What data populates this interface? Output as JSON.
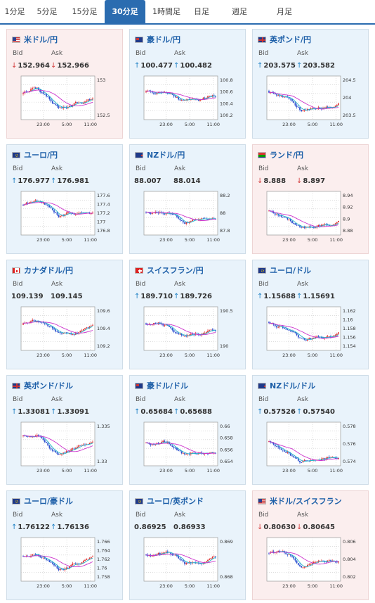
{
  "tabs": [
    {
      "label": "1分足",
      "active": false
    },
    {
      "label": "5分足",
      "active": false
    },
    {
      "label": "15分足",
      "active": false
    },
    {
      "label": "30分足",
      "active": true
    },
    {
      "label": "1時間足",
      "active": false
    },
    {
      "label": "日足",
      "active": false
    },
    {
      "label": "週足",
      "active": false
    },
    {
      "label": "月足",
      "active": false
    }
  ],
  "labels": {
    "bid": "Bid",
    "ask": "Ask"
  },
  "x_ticks": [
    "23:00",
    "5:00",
    "11:00"
  ],
  "cards": [
    {
      "pair": "米ドル/円",
      "flag": "us-jp-flag-icon",
      "trend": "down",
      "bid": "152.964",
      "ask": "152.966",
      "y_ticks": [
        "153",
        "152.5"
      ],
      "seed": 1
    },
    {
      "pair": "豪ドル/円",
      "flag": "au-jp-flag-icon",
      "trend": "up",
      "bid": "100.477",
      "ask": "100.482",
      "y_ticks": [
        "100.8",
        "100.6",
        "100.4",
        "100.2"
      ],
      "seed": 2
    },
    {
      "pair": "英ポンド/円",
      "flag": "gb-jp-flag-icon",
      "trend": "up",
      "bid": "203.575",
      "ask": "203.582",
      "y_ticks": [
        "204.5",
        "204",
        "203.5"
      ],
      "seed": 3
    },
    {
      "pair": "ユーロ/円",
      "flag": "eu-jp-flag-icon",
      "trend": "up",
      "bid": "176.977",
      "ask": "176.981",
      "y_ticks": [
        "177.6",
        "177.4",
        "177.2",
        "177",
        "176.8"
      ],
      "seed": 4
    },
    {
      "pair": "NZドル/円",
      "flag": "nz-jp-flag-icon",
      "trend": "none",
      "bid": "88.007",
      "ask": "88.014",
      "y_ticks": [
        "88.2",
        "88",
        "87.8"
      ],
      "seed": 5
    },
    {
      "pair": "ランド/円",
      "flag": "za-jp-flag-icon",
      "trend": "down",
      "bid": "8.888",
      "ask": "8.897",
      "y_ticks": [
        "8.94",
        "8.92",
        "8.9",
        "8.88"
      ],
      "seed": 6
    },
    {
      "pair": "カナダドル/円",
      "flag": "ca-jp-flag-icon",
      "trend": "none",
      "bid": "109.139",
      "ask": "109.145",
      "y_ticks": [
        "109.6",
        "109.4",
        "109.2"
      ],
      "seed": 7
    },
    {
      "pair": "スイスフラン/円",
      "flag": "ch-jp-flag-icon",
      "trend": "up",
      "bid": "189.710",
      "ask": "189.726",
      "y_ticks": [
        "190.5",
        "190"
      ],
      "seed": 8
    },
    {
      "pair": "ユーロ/ドル",
      "flag": "eu-us-flag-icon",
      "trend": "up",
      "bid": "1.15688",
      "ask": "1.15691",
      "y_ticks": [
        "1.162",
        "1.16",
        "1.158",
        "1.156",
        "1.154"
      ],
      "seed": 9
    },
    {
      "pair": "英ポンド/ドル",
      "flag": "gb-us-flag-icon",
      "trend": "up",
      "bid": "1.33081",
      "ask": "1.33091",
      "y_ticks": [
        "1.335",
        "1.33"
      ],
      "seed": 10
    },
    {
      "pair": "豪ドル/ドル",
      "flag": "au-us-flag-icon",
      "trend": "up",
      "bid": "0.65684",
      "ask": "0.65688",
      "y_ticks": [
        "0.66",
        "0.658",
        "0.656",
        "0.654"
      ],
      "seed": 11
    },
    {
      "pair": "NZドル/ドル",
      "flag": "nz-us-flag-icon",
      "trend": "up",
      "bid": "0.57526",
      "ask": "0.57540",
      "y_ticks": [
        "0.578",
        "0.576",
        "0.574"
      ],
      "seed": 12
    },
    {
      "pair": "ユーロ/豪ドル",
      "flag": "eu-au-flag-icon",
      "trend": "up",
      "bid": "1.76122",
      "ask": "1.76136",
      "y_ticks": [
        "1.766",
        "1.764",
        "1.762",
        "1.76",
        "1.758"
      ],
      "seed": 13
    },
    {
      "pair": "ユーロ/英ポンド",
      "flag": "eu-gb-flag-icon",
      "trend": "none",
      "bid": "0.86925",
      "ask": "0.86933",
      "y_ticks": [
        "0.869",
        "0.868"
      ],
      "seed": 14
    },
    {
      "pair": "米ドル/スイスフラン",
      "flag": "us-ch-flag-icon",
      "trend": "down",
      "bid": "0.80630",
      "ask": "0.80645",
      "y_ticks": [
        "0.806",
        "0.804",
        "0.802"
      ],
      "seed": 15
    }
  ],
  "colors": {
    "accent": "#2b6cb0",
    "up_bg": "#e9f3fb",
    "down_bg": "#fbeeee",
    "candle_up": "#e03030",
    "candle_down": "#2a4fd0",
    "ma_short": "#22b5c9",
    "ma_long": "#cc33cc"
  }
}
